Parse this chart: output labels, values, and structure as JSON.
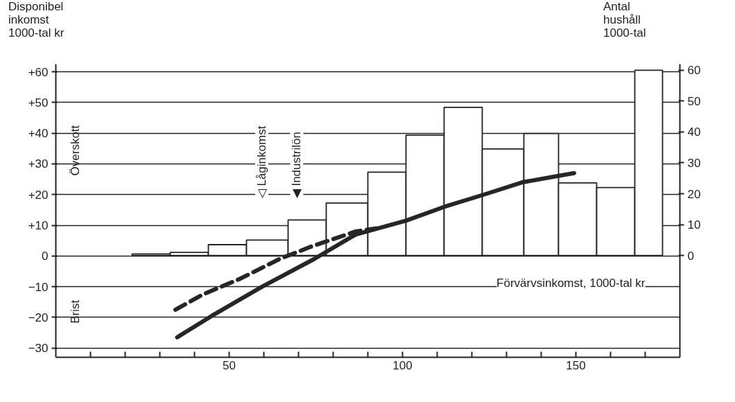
{
  "chart_data": {
    "type": "histogram",
    "xlabel": "Förvärvsinkomst, 1000-tal kr",
    "ylabel": "Disponibel\ninkomst\n1000-tal kr",
    "y2label": "Antal\nhushåll\n1000-tal",
    "xlim": [
      0,
      180
    ],
    "xticks": [
      {
        "value": 10,
        "label": null
      },
      {
        "value": 20,
        "label": null
      },
      {
        "value": 30,
        "label": null
      },
      {
        "value": 40,
        "label": null
      },
      50,
      {
        "value": 60,
        "label": null
      },
      {
        "value": 70,
        "label": null
      },
      {
        "value": 80,
        "label": null
      },
      {
        "value": 90,
        "label": null
      },
      100,
      {
        "value": 110,
        "label": null
      },
      {
        "value": 120,
        "label": null
      },
      {
        "value": 130,
        "label": null
      },
      {
        "value": 140,
        "label": null
      },
      150,
      {
        "value": 160,
        "label": null
      },
      {
        "value": 170,
        "label": null
      }
    ],
    "ylim": [
      -33,
      62.5
    ],
    "yticks": [
      {
        "value": -30,
        "label": "−30"
      },
      {
        "value": -20,
        "label": "−20"
      },
      {
        "value": -10,
        "label": "−10"
      },
      0,
      {
        "value": 10,
        "label": "+10"
      },
      {
        "value": 20,
        "label": "+20"
      },
      {
        "value": 30,
        "label": "+30"
      },
      {
        "value": 40,
        "label": "+40"
      },
      {
        "value": 50,
        "label": "+50"
      },
      {
        "value": 60,
        "label": "+60"
      }
    ],
    "y2lim": [
      -33,
      62
    ],
    "y2ticks": [
      0,
      10,
      20,
      30,
      40,
      50,
      60
    ],
    "grid": "y",
    "series": [
      {
        "axis": "y2",
        "color": "#ffffff",
        "bins": [
          22,
          33,
          44,
          55,
          67,
          78,
          90,
          101,
          112,
          123,
          135,
          145,
          156,
          167,
          175
        ],
        "values": [
          0.5,
          1,
          3.5,
          5,
          11.5,
          17,
          27,
          39,
          48,
          34.5,
          39.5,
          23.5,
          22,
          60
        ]
      },
      {
        "type": "line",
        "color": "#262626",
        "line_style": "solid",
        "x": [
          35,
          45,
          59.5,
          74.5,
          86.5,
          101,
          112,
          123.5,
          134.5,
          149.5
        ],
        "values": [
          -26.5,
          -19.5,
          -10,
          -1,
          7,
          11.5,
          16,
          20,
          24,
          27
        ]
      },
      {
        "type": "line",
        "color": "#262626",
        "line_style": "dashed",
        "x": [
          34.5,
          42.5,
          53,
          64.5,
          73.5,
          86.5,
          92.5
        ],
        "values": [
          -17.5,
          -12.5,
          -7.5,
          -1,
          3,
          8,
          9
        ]
      }
    ],
    "annotations": [
      "Överskott",
      "Brist",
      "◁ Låginkomst",
      "◀ Industrilön"
    ]
  }
}
